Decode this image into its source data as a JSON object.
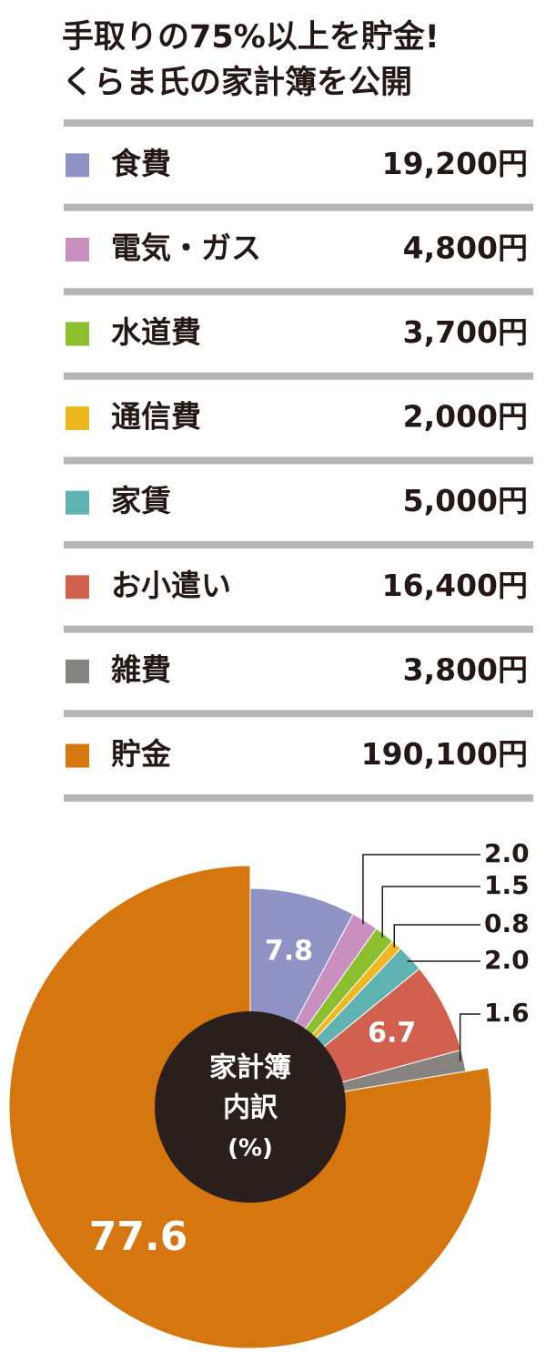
{
  "chart_data": {
    "type": "pie",
    "title": "手取りの75%以上を貯金!",
    "subtitle": "くらま氏の家計簿を公開",
    "categories": [
      "食費",
      "電気・ガス",
      "水道費",
      "通信費",
      "家賃",
      "お小遣い",
      "雑費",
      "貯金"
    ],
    "amounts": [
      "19,200円",
      "4,800円",
      "3,700円",
      "2,000円",
      "5,000円",
      "16,400円",
      "3,800円",
      "190,100円"
    ],
    "colors": [
      "#8e93c4",
      "#c98fbf",
      "#8cbf2e",
      "#f0b820",
      "#5fb3b3",
      "#d2604f",
      "#878380",
      "#d5760f"
    ],
    "values": [
      7.8,
      2.0,
      1.5,
      0.8,
      2.0,
      6.7,
      1.6,
      77.6
    ],
    "value_labels": [
      "7.8",
      "2.0",
      "1.5",
      "0.8",
      "2.0",
      "6.7",
      "1.6",
      "77.6"
    ],
    "center_label": [
      "家計簿",
      "内訳",
      "(%)"
    ]
  }
}
